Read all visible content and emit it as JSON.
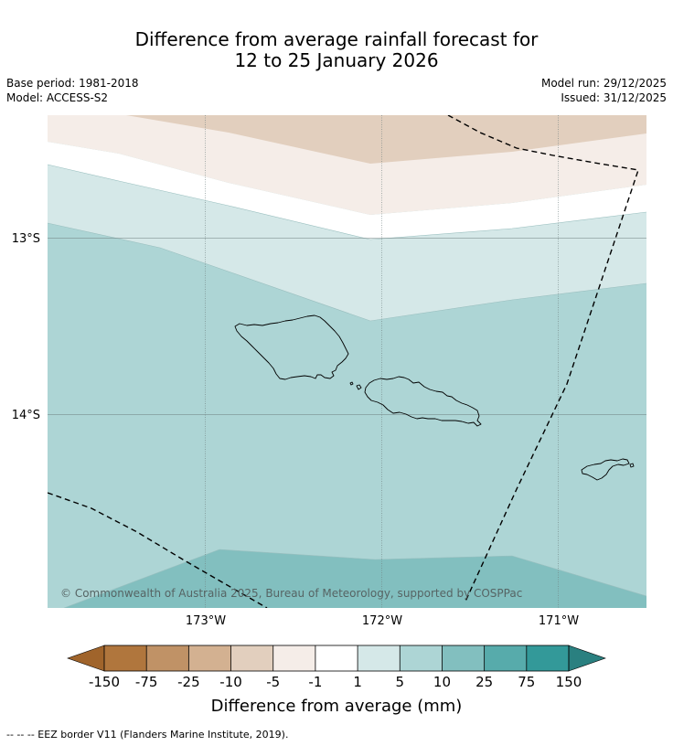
{
  "title": {
    "line1": "Difference from average rainfall forecast for",
    "line2": "12 to 25 January 2026"
  },
  "info": {
    "base_period": "Base period: 1981-2018",
    "model": "Model: ACCESS-S2",
    "model_run": "Model run: 29/12/2025",
    "issued": "Issued: 31/12/2025"
  },
  "map": {
    "latitude_labels": [
      "13°S",
      "14°S"
    ],
    "longitude_labels": [
      "173°W",
      "172°W",
      "171°W"
    ],
    "copyright": "© Commonwealth of Australia 2025, Bureau of Meteorology, supported by COSPPac"
  },
  "colorbar": {
    "title": "Difference from average (mm)",
    "tick_labels": [
      "-150",
      "-75",
      "-25",
      "-10",
      "-5",
      "-1",
      "1",
      "5",
      "10",
      "25",
      "75",
      "150"
    ],
    "colors": [
      "#a0642b",
      "#b0763d",
      "#c09266",
      "#d3b191",
      "#e2cfbe",
      "#f5ede8",
      "#ffffff",
      "#d5e8e8",
      "#add5d5",
      "#82bfbf",
      "#57abab",
      "#339999",
      "#2a8080"
    ]
  },
  "footer": {
    "eez_note": "--  --  -- EEZ border V11 (Flanders Marine Institute, 2019)."
  }
}
